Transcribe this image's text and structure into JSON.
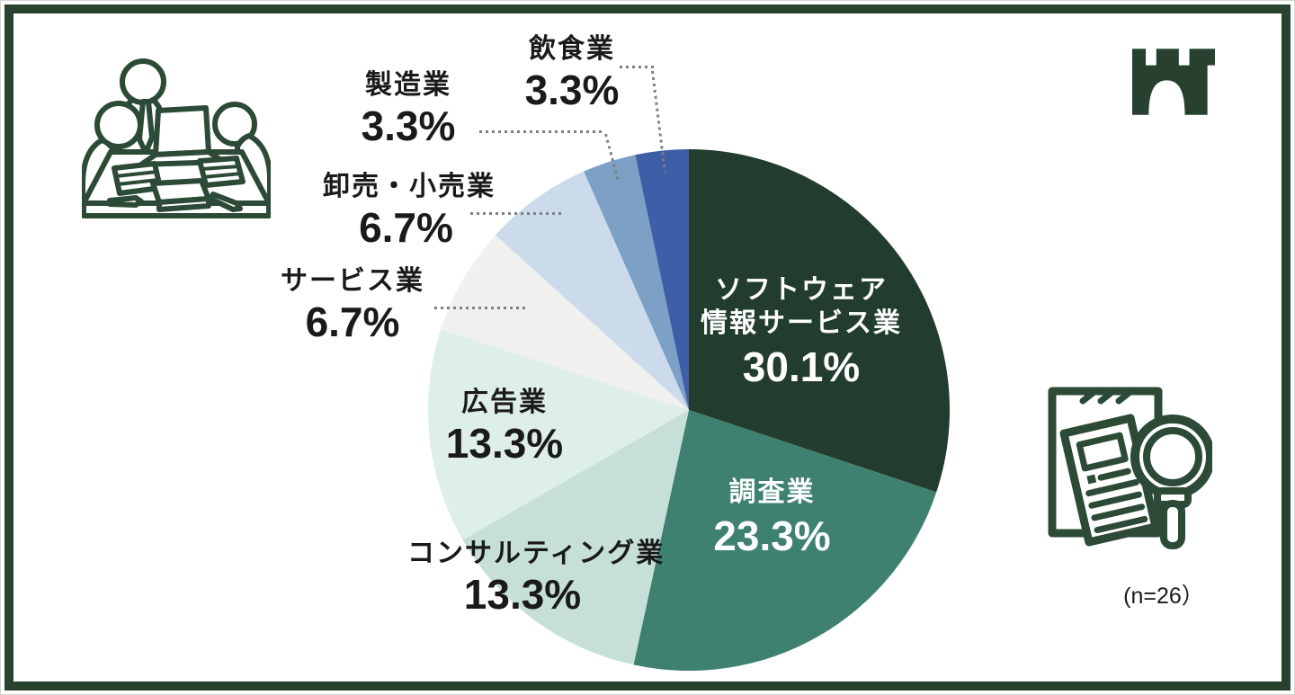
{
  "page": {
    "background": "#ffffff",
    "frame_color": "#28422F",
    "note": "(n=26）"
  },
  "icons": {
    "top_left": "meeting-table-illustration",
    "top_right": "castle-logo-icon",
    "bottom_right": "document-magnifier-illustration",
    "icon_color": "#2C4A36"
  },
  "chart_data": {
    "type": "pie",
    "title": "",
    "direction": "clockwise",
    "start_angle_deg": 0,
    "legend": "none",
    "sample_size": "(n=26）",
    "segments": [
      {
        "label": "ソフトウェア情報サービス業",
        "label_lines": [
          "ソフトウェア",
          "情報サービス業"
        ],
        "value": 30.1,
        "pct_label": "30.1%",
        "color": "#223D2D",
        "text_color": "#ffffff",
        "label_position": "inside"
      },
      {
        "label": "調査業",
        "value": 23.3,
        "pct_label": "23.3%",
        "color": "#3E8170",
        "text_color": "#ffffff",
        "label_position": "inside"
      },
      {
        "label": "コンサルティング業",
        "value": 13.3,
        "pct_label": "13.3%",
        "color": "#C6E0D7",
        "text_color": "#1a1a1a",
        "label_position": "outside"
      },
      {
        "label": "広告業",
        "value": 13.3,
        "pct_label": "13.3%",
        "color": "#DEEEE9",
        "text_color": "#1a1a1a",
        "label_position": "inside-edge"
      },
      {
        "label": "サービス業",
        "value": 6.7,
        "pct_label": "6.7%",
        "color": "#F0F0EE",
        "text_color": "#1a1a1a",
        "label_position": "outside-leader"
      },
      {
        "label": "卸売・小売業",
        "value": 6.7,
        "pct_label": "6.7%",
        "color": "#CCDBEB",
        "text_color": "#1a1a1a",
        "label_position": "outside-leader"
      },
      {
        "label": "製造業",
        "value": 3.3,
        "pct_label": "3.3%",
        "color": "#7DA0C6",
        "text_color": "#1a1a1a",
        "label_position": "outside-leader"
      },
      {
        "label": "飲食業",
        "value": 3.3,
        "pct_label": "3.3%",
        "color": "#3E5FA8",
        "text_color": "#1a1a1a",
        "label_position": "outside-leader"
      }
    ]
  }
}
